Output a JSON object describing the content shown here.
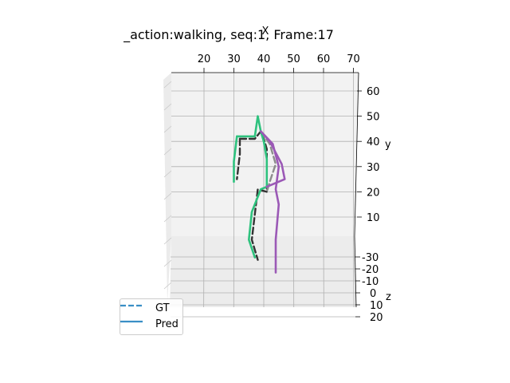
{
  "chart_data": {
    "type": "line",
    "title": "_action:walking, seq:1,  Frame:17",
    "xlabel": "X",
    "ylabel": "y",
    "zlabel": "z",
    "x_ticks": [
      20,
      30,
      40,
      50,
      60,
      70
    ],
    "y_ticks": [
      10,
      20,
      30,
      40,
      50,
      60
    ],
    "z_ticks": [
      -30,
      -20,
      -10,
      0,
      10,
      20
    ],
    "grid": true,
    "legend_position": "lower-left",
    "legend": [
      {
        "label": "GT",
        "style": "dashed",
        "color": "#3a8fc6"
      },
      {
        "label": "Pred",
        "style": "solid",
        "color": "#3a8fc6"
      }
    ],
    "series": [
      {
        "name": "GT",
        "style": "dashed",
        "segments": [
          {
            "color": "#333333",
            "points": [
              [
                32,
                41
              ],
              [
                37,
                41
              ],
              [
                39,
                44
              ],
              [
                40,
                41
              ],
              [
                41,
                37
              ],
              [
                41,
                30
              ],
              [
                41,
                20
              ],
              [
                38,
                21
              ],
              [
                36,
                1
              ],
              [
                38,
                -7
              ]
            ]
          },
          {
            "color": "#333333",
            "points": [
              [
                32,
                41
              ],
              [
                32,
                35
              ],
              [
                31,
                25
              ]
            ]
          },
          {
            "color": "#8c8c8c",
            "points": [
              [
                39,
                44
              ],
              [
                42,
                39
              ],
              [
                44,
                31
              ],
              [
                42,
                24
              ],
              [
                41,
                20
              ]
            ]
          }
        ]
      },
      {
        "name": "Pred",
        "style": "solid",
        "segments": [
          {
            "color": "#2ec27e",
            "points": [
              [
                31,
                42
              ],
              [
                37,
                42
              ],
              [
                38,
                50
              ],
              [
                39,
                44
              ],
              [
                40,
                40
              ],
              [
                41,
                33
              ],
              [
                41,
                22
              ],
              [
                39,
                21
              ],
              [
                36,
                12
              ],
              [
                35,
                1
              ],
              [
                37,
                -6
              ]
            ]
          },
          {
            "color": "#2ec27e",
            "points": [
              [
                31,
                42
              ],
              [
                30,
                32
              ],
              [
                30,
                24
              ]
            ]
          },
          {
            "color": "#9b59b6",
            "points": [
              [
                39,
                44
              ],
              [
                43,
                39
              ],
              [
                45,
                30
              ],
              [
                44,
                21
              ],
              [
                45,
                15
              ],
              [
                44,
                1
              ],
              [
                44,
                -12
              ]
            ]
          },
          {
            "color": "#9b59b6",
            "points": [
              [
                39,
                44
              ],
              [
                42,
                40
              ],
              [
                46,
                31
              ],
              [
                47,
                25
              ],
              [
                41,
                22
              ]
            ]
          }
        ]
      }
    ]
  }
}
